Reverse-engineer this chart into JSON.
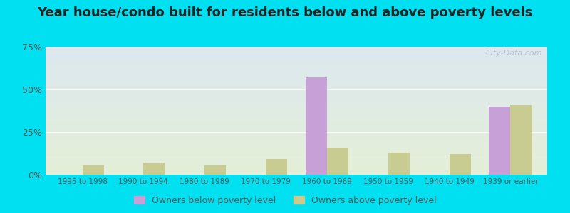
{
  "title": "Year house/condo built for residents below and above poverty levels",
  "categories": [
    "1995 to 1998",
    "1990 to 1994",
    "1980 to 1989",
    "1970 to 1979",
    "1960 to 1969",
    "1950 to 1959",
    "1940 to 1949",
    "1939 or earlier"
  ],
  "below_poverty": [
    0.0,
    0.0,
    0.0,
    0.0,
    57.0,
    0.0,
    0.0,
    40.0
  ],
  "above_poverty": [
    5.5,
    6.5,
    5.5,
    9.0,
    16.0,
    13.0,
    12.0,
    41.0
  ],
  "below_color": "#c8a0d8",
  "above_color": "#c8cc90",
  "ylim": [
    0,
    75
  ],
  "yticks": [
    0,
    25,
    50,
    75
  ],
  "ytick_labels": [
    "0%",
    "25%",
    "50%",
    "75%"
  ],
  "background_top": "#dde8f0",
  "background_bottom": "#e4efd8",
  "outer_bg": "#00e0f0",
  "title_fontsize": 13,
  "legend_below_label": "Owners below poverty level",
  "legend_above_label": "Owners above poverty level",
  "watermark": "City-Data.com"
}
